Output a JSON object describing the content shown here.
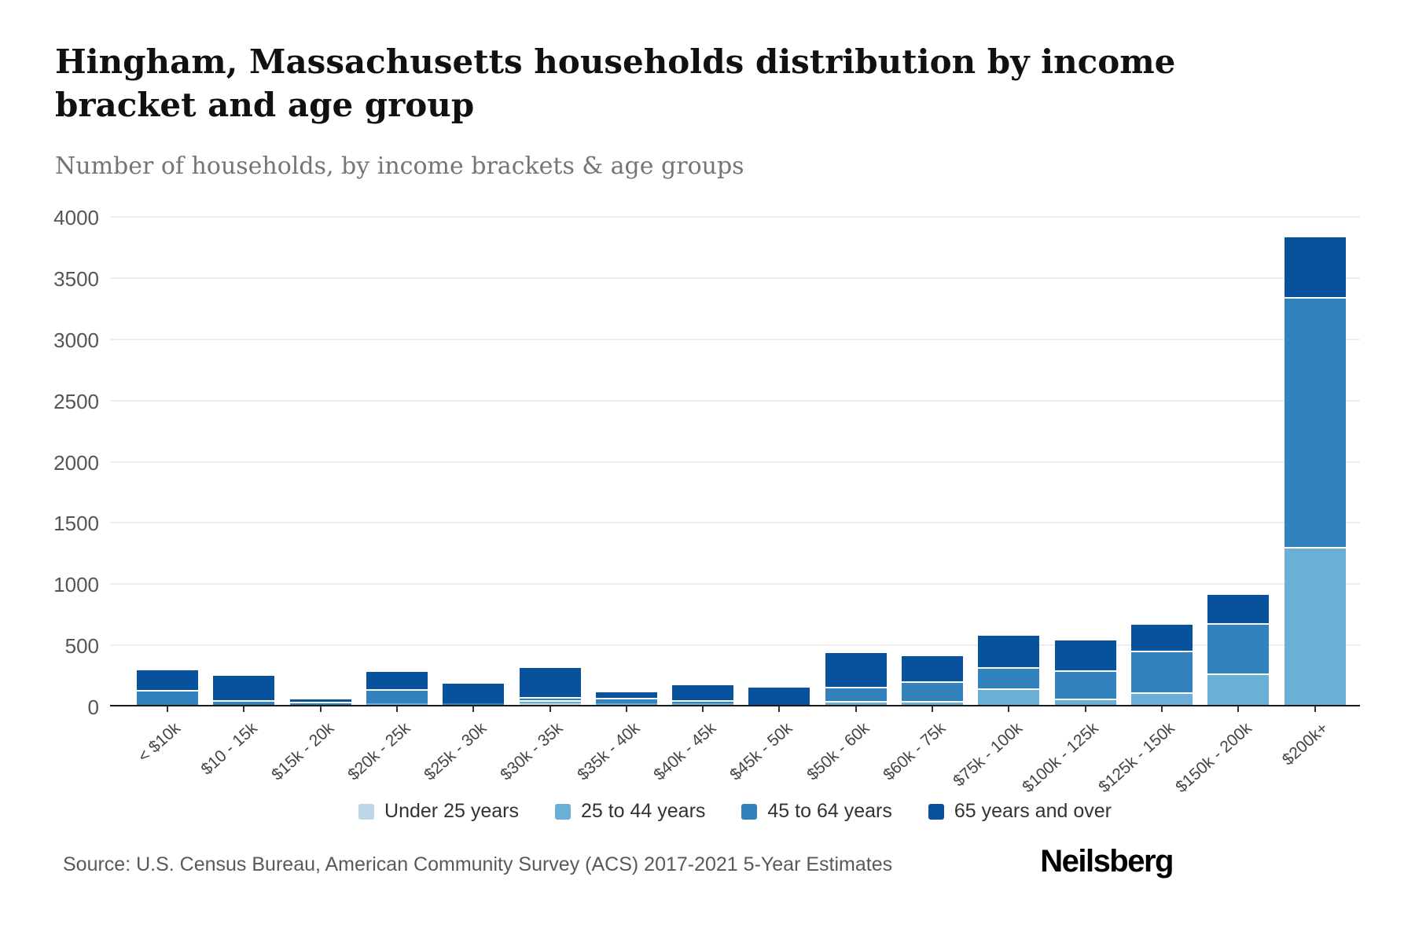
{
  "header": {
    "title": "Hingham, Massachusetts households distribution by income bracket and age group",
    "subtitle": "Number of households, by income brackets & age groups"
  },
  "chart_data": {
    "type": "bar",
    "stacked": true,
    "title": "Hingham, Massachusetts households distribution by income bracket and age group",
    "subtitle": "Number of households, by income brackets & age groups",
    "xlabel": "",
    "ylabel": "Number of households",
    "ylim": [
      0,
      4000
    ],
    "ytick_step": 500,
    "yticks": [
      0,
      500,
      1000,
      1500,
      2000,
      2500,
      3000,
      3500,
      4000
    ],
    "grid": true,
    "legend_position": "bottom",
    "categories": [
      "< $10k",
      "$10 - 15k",
      "$15k - 20k",
      "$20k - 25k",
      "$25k - 30k",
      "$30k - 35k",
      "$35k - 40k",
      "$40k - 45k",
      "$45k - 50k",
      "$50k - 60k",
      "$60k - 75k",
      "$75k - 100k",
      "$100k - 125k",
      "$125k - 150k",
      "$150k - 200k",
      "$200k+"
    ],
    "series": [
      {
        "name": "Under 25 years",
        "color": "#bdd7e7",
        "values": [
          0,
          0,
          0,
          0,
          0,
          15,
          0,
          0,
          0,
          0,
          0,
          0,
          0,
          0,
          0,
          0
        ]
      },
      {
        "name": "25 to 44 years",
        "color": "#6baed6",
        "values": [
          0,
          0,
          0,
          15,
          0,
          25,
          15,
          15,
          0,
          35,
          35,
          135,
          50,
          105,
          260,
          1290
        ]
      },
      {
        "name": "45 to 64 years",
        "color": "#3182bd",
        "values": [
          125,
          40,
          25,
          115,
          15,
          25,
          40,
          25,
          0,
          110,
          155,
          175,
          230,
          335,
          405,
          2045
        ]
      },
      {
        "name": "65 years and over",
        "color": "#08519c",
        "values": [
          170,
          210,
          30,
          155,
          170,
          250,
          60,
          135,
          155,
          290,
          220,
          270,
          260,
          230,
          250,
          495
        ]
      }
    ],
    "totals": [
      295,
      250,
      55,
      285,
      185,
      315,
      115,
      175,
      155,
      435,
      410,
      580,
      540,
      670,
      915,
      3830
    ]
  },
  "footer": {
    "source": "Source: U.S. Census Bureau, American Community Survey (ACS) 2017-2021 5-Year Estimates",
    "brand": "Neilsberg"
  }
}
